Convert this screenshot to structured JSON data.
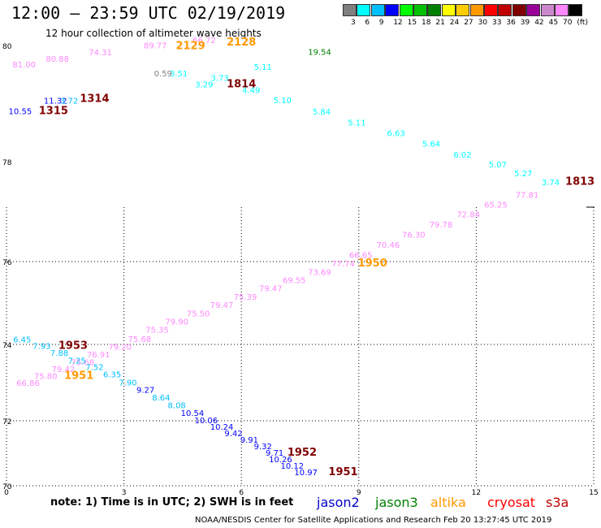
{
  "header": {
    "title": "12:00 – 23:59 UTC 02/19/2019",
    "subtitle": "12 hour collection of altimeter wave heights"
  },
  "legend": {
    "colors": [
      "#808080",
      "#00ffff",
      "#00bfff",
      "#0000ff",
      "#00ff00",
      "#00c000",
      "#008000",
      "#ffff00",
      "#ffcc00",
      "#ff9900",
      "#ff0000",
      "#c00000",
      "#800000",
      "#990099",
      "#cc88cc",
      "#ff88ff",
      "#000000"
    ],
    "labels": [
      "3",
      "6",
      "9",
      "12",
      "15",
      "18",
      "21",
      "24",
      "27",
      "30",
      "33",
      "36",
      "39",
      "42",
      "45",
      "70",
      "(ft)"
    ]
  },
  "axes": {
    "y_ticks": [
      "80",
      "78",
      "76",
      "74",
      "72",
      "70"
    ],
    "x_ticks": [
      "0",
      "3",
      "6",
      "9",
      "12",
      "15"
    ]
  },
  "observations": [
    {
      "text": "81.00",
      "x": 0.45,
      "y": 79.62,
      "color": "#ff88ff"
    },
    {
      "text": "80.88",
      "x": 1.3,
      "y": 79.72,
      "color": "#ff88ff"
    },
    {
      "text": "74.31",
      "x": 2.4,
      "y": 79.83,
      "color": "#ff88ff"
    },
    {
      "text": "89.77",
      "x": 3.8,
      "y": 79.95,
      "color": "#ff88ff"
    },
    {
      "text": "66.72",
      "x": 5.05,
      "y": 80.04,
      "color": "#ff88ff"
    },
    {
      "text": "2129",
      "x": 4.7,
      "y": 79.94,
      "color": "#ff9900",
      "big": true
    },
    {
      "text": "2128",
      "x": 6.0,
      "y": 80.0,
      "color": "#ff9900",
      "big": true
    },
    {
      "text": "19.54",
      "x": 8.0,
      "y": 79.84,
      "color": "#008000"
    },
    {
      "text": "5.11",
      "x": 6.55,
      "y": 79.58,
      "color": "#00ffff"
    },
    {
      "text": "3.73",
      "x": 5.45,
      "y": 79.39,
      "color": "#00ffff"
    },
    {
      "text": "0.59",
      "x": 4.0,
      "y": 79.47,
      "color": "#808080"
    },
    {
      "text": "3.51",
      "x": 4.4,
      "y": 79.47,
      "color": "#00ffff"
    },
    {
      "text": "3.29",
      "x": 5.05,
      "y": 79.28,
      "color": "#00ffff"
    },
    {
      "text": "1814",
      "x": 6.0,
      "y": 79.28,
      "color": "#800000",
      "big": true
    },
    {
      "text": "4.49",
      "x": 6.25,
      "y": 79.18,
      "color": "#00ffff"
    },
    {
      "text": "5.10",
      "x": 7.05,
      "y": 79.01,
      "color": "#00ffff"
    },
    {
      "text": "5.84",
      "x": 8.05,
      "y": 78.81,
      "color": "#00ffff"
    },
    {
      "text": "5.11",
      "x": 8.95,
      "y": 78.62,
      "color": "#00ffff"
    },
    {
      "text": "6.63",
      "x": 9.95,
      "y": 78.44,
      "color": "#00ffff"
    },
    {
      "text": "5.64",
      "x": 10.85,
      "y": 78.26,
      "color": "#00ffff"
    },
    {
      "text": "6.02",
      "x": 11.65,
      "y": 78.07,
      "color": "#00ffff"
    },
    {
      "text": "5.07",
      "x": 12.55,
      "y": 77.89,
      "color": "#00ffff"
    },
    {
      "text": "5.27",
      "x": 13.2,
      "y": 77.71,
      "color": "#00ffff"
    },
    {
      "text": "3.74",
      "x": 13.9,
      "y": 77.53,
      "color": "#00ffff"
    },
    {
      "text": "1813",
      "x": 14.65,
      "y": 77.54,
      "color": "#800000",
      "big": true
    },
    {
      "text": "11.32",
      "x": 1.25,
      "y": 79.0,
      "color": "#0000ff"
    },
    {
      "text": "3.72",
      "x": 1.6,
      "y": 79.0,
      "color": "#00bfff"
    },
    {
      "text": "1314",
      "x": 2.25,
      "y": 79.03,
      "color": "#800000",
      "big": true
    },
    {
      "text": "10.55",
      "x": 0.35,
      "y": 78.82,
      "color": "#0000ff"
    },
    {
      "text": "1315",
      "x": 1.2,
      "y": 78.82,
      "color": "#800000",
      "big": true
    },
    {
      "text": "77.81",
      "x": 13.3,
      "y": 77.28,
      "color": "#ff88ff"
    },
    {
      "text": "65.25",
      "x": 12.5,
      "y": 77.08,
      "color": "#ff88ff"
    },
    {
      "text": "72.84",
      "x": 11.8,
      "y": 76.89,
      "color": "#ff88ff"
    },
    {
      "text": "79.78",
      "x": 11.1,
      "y": 76.68,
      "color": "#ff88ff"
    },
    {
      "text": "76.30",
      "x": 10.4,
      "y": 76.48,
      "color": "#ff88ff"
    },
    {
      "text": "70.46",
      "x": 9.75,
      "y": 76.28,
      "color": "#ff88ff"
    },
    {
      "text": "66.65",
      "x": 9.05,
      "y": 76.07,
      "color": "#ff88ff"
    },
    {
      "text": "1950",
      "x": 9.35,
      "y": 75.88,
      "color": "#ff9900",
      "big": true
    },
    {
      "text": "77.74",
      "x": 8.6,
      "y": 75.88,
      "color": "#ff88ff"
    },
    {
      "text": "73.69",
      "x": 8.0,
      "y": 75.68,
      "color": "#ff88ff"
    },
    {
      "text": "69.55",
      "x": 7.35,
      "y": 75.48,
      "color": "#ff88ff"
    },
    {
      "text": "79.47",
      "x": 6.75,
      "y": 75.28,
      "color": "#ff88ff"
    },
    {
      "text": "75.39",
      "x": 6.1,
      "y": 75.08,
      "color": "#ff88ff"
    },
    {
      "text": "79.47",
      "x": 5.5,
      "y": 74.88,
      "color": "#ff88ff"
    },
    {
      "text": "75.50",
      "x": 4.9,
      "y": 74.68,
      "color": "#ff88ff"
    },
    {
      "text": "79.90",
      "x": 4.35,
      "y": 74.48,
      "color": "#ff88ff"
    },
    {
      "text": "75.35",
      "x": 3.85,
      "y": 74.28,
      "color": "#ff88ff"
    },
    {
      "text": "75.68",
      "x": 3.4,
      "y": 74.06,
      "color": "#ff88ff"
    },
    {
      "text": "79.20",
      "x": 2.9,
      "y": 73.86,
      "color": "#ff88ff"
    },
    {
      "text": "76.91",
      "x": 2.35,
      "y": 73.66,
      "color": "#ff88ff"
    },
    {
      "text": "75.68",
      "x": 1.95,
      "y": 73.46,
      "color": "#ff88ff"
    },
    {
      "text": "79.42",
      "x": 1.45,
      "y": 73.28,
      "color": "#ff88ff"
    },
    {
      "text": "75.80",
      "x": 1.0,
      "y": 73.1,
      "color": "#ff88ff"
    },
    {
      "text": "66.86",
      "x": 0.55,
      "y": 72.92,
      "color": "#ff88ff"
    },
    {
      "text": "6.45",
      "x": 0.4,
      "y": 74.05,
      "color": "#00bfff"
    },
    {
      "text": "7.93",
      "x": 0.9,
      "y": 73.88,
      "color": "#00bfff"
    },
    {
      "text": "1953",
      "x": 1.7,
      "y": 73.88,
      "color": "#800000",
      "big": true
    },
    {
      "text": "7.88",
      "x": 1.35,
      "y": 73.7,
      "color": "#00bfff"
    },
    {
      "text": "7.25",
      "x": 1.8,
      "y": 73.5,
      "color": "#00bfff"
    },
    {
      "text": "7.52",
      "x": 2.25,
      "y": 73.33,
      "color": "#00bfff"
    },
    {
      "text": "1951",
      "x": 1.85,
      "y": 73.1,
      "color": "#ff9900",
      "big": true
    },
    {
      "text": "6.35",
      "x": 2.7,
      "y": 73.14,
      "color": "#00bfff"
    },
    {
      "text": "7.90",
      "x": 3.1,
      "y": 72.93,
      "color": "#00bfff"
    },
    {
      "text": "9.27",
      "x": 3.55,
      "y": 72.73,
      "color": "#0000ff"
    },
    {
      "text": "8.64",
      "x": 3.95,
      "y": 72.53,
      "color": "#00bfff"
    },
    {
      "text": "8.08",
      "x": 4.35,
      "y": 72.33,
      "color": "#00bfff"
    },
    {
      "text": "10.54",
      "x": 4.75,
      "y": 72.13,
      "color": "#0000ff"
    },
    {
      "text": "10.06",
      "x": 5.1,
      "y": 71.93,
      "color": "#0000ff"
    },
    {
      "text": "10.24",
      "x": 5.5,
      "y": 71.73,
      "color": "#0000ff"
    },
    {
      "text": "9.42",
      "x": 5.8,
      "y": 71.53,
      "color": "#0000ff"
    },
    {
      "text": "9.91",
      "x": 6.2,
      "y": 71.33,
      "color": "#0000ff"
    },
    {
      "text": "9.32",
      "x": 6.55,
      "y": 71.13,
      "color": "#0000ff"
    },
    {
      "text": "9.71",
      "x": 6.85,
      "y": 70.93,
      "color": "#0000ff"
    },
    {
      "text": "1952",
      "x": 7.55,
      "y": 70.93,
      "color": "#800000",
      "big": true
    },
    {
      "text": "10.26",
      "x": 7.0,
      "y": 70.73,
      "color": "#0000ff"
    },
    {
      "text": "10.12",
      "x": 7.3,
      "y": 70.53,
      "color": "#0000ff"
    },
    {
      "text": "10.97",
      "x": 7.65,
      "y": 70.33,
      "color": "#0000ff"
    },
    {
      "text": "1951",
      "x": 8.6,
      "y": 70.33,
      "color": "#800000",
      "big": true
    }
  ],
  "note": "note: 1) Time is in UTC; 2) SWH is in feet",
  "satellites": [
    {
      "name": "jason2",
      "color": "#0000cc"
    },
    {
      "name": "jason3",
      "color": "#008000"
    },
    {
      "name": "altika",
      "color": "#ff9900"
    },
    {
      "name": "cryosat",
      "color": "#ff0000"
    },
    {
      "name": "s3a",
      "color": "#c00000"
    }
  ],
  "credit": "NOAA/NESDIS Center for Satellite Applications and Research    Feb 20 13:27:45 UTC 2019"
}
